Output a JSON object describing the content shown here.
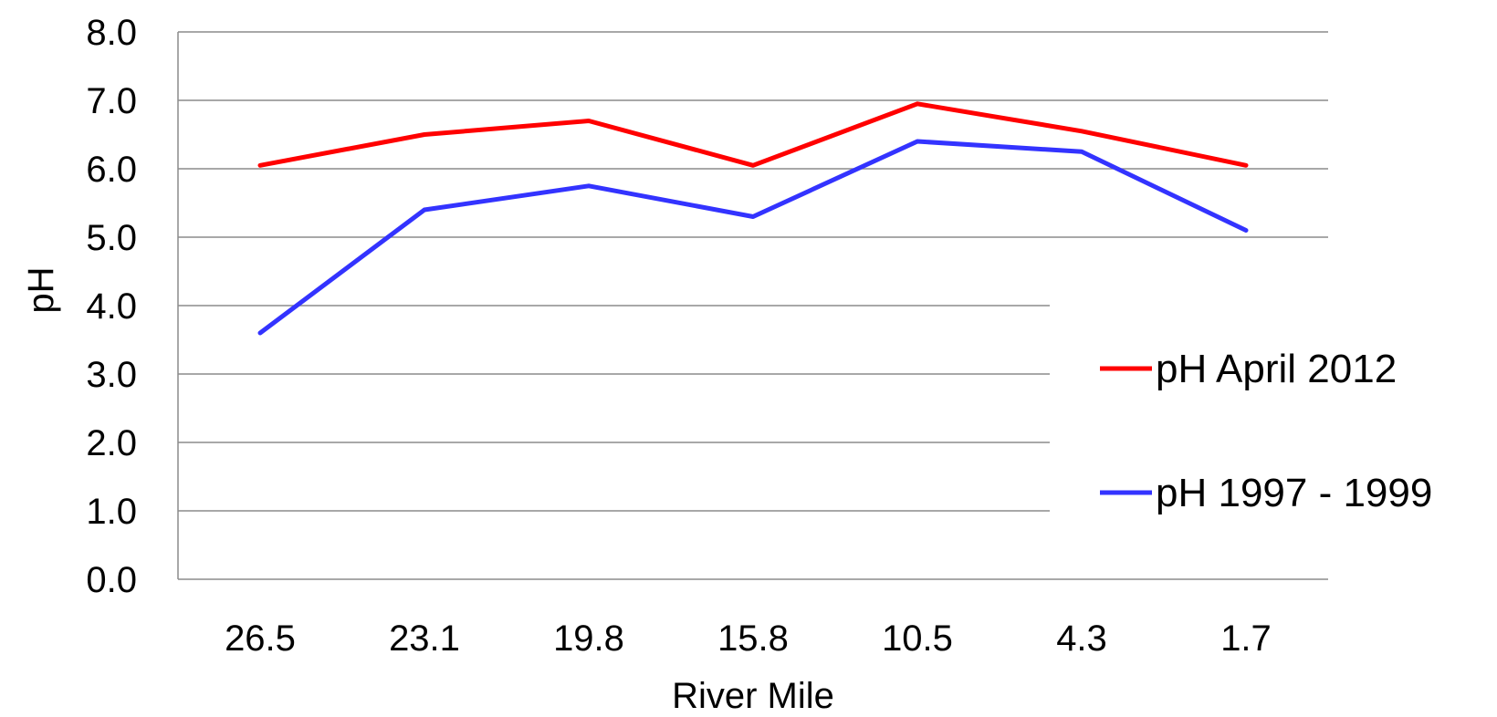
{
  "chart_data": {
    "type": "line",
    "xlabel": "River Mile",
    "ylabel": "pH",
    "categories": [
      "26.5",
      "23.1",
      "19.8",
      "15.8",
      "10.5",
      "4.3",
      "1.7"
    ],
    "ylim": [
      0,
      8
    ],
    "yticks": [
      "0.0",
      "1.0",
      "2.0",
      "3.0",
      "4.0",
      "5.0",
      "6.0",
      "7.0",
      "8.0"
    ],
    "grid": true,
    "legend_position": "right",
    "series": [
      {
        "name": "pH April 2012",
        "color": "#ff0000",
        "values": [
          6.05,
          6.5,
          6.7,
          6.05,
          6.95,
          6.55,
          6.05
        ]
      },
      {
        "name": "pH 1997 - 1999",
        "color": "#3333ff",
        "values": [
          3.6,
          5.4,
          5.75,
          5.3,
          6.4,
          6.25,
          5.1
        ]
      }
    ]
  }
}
